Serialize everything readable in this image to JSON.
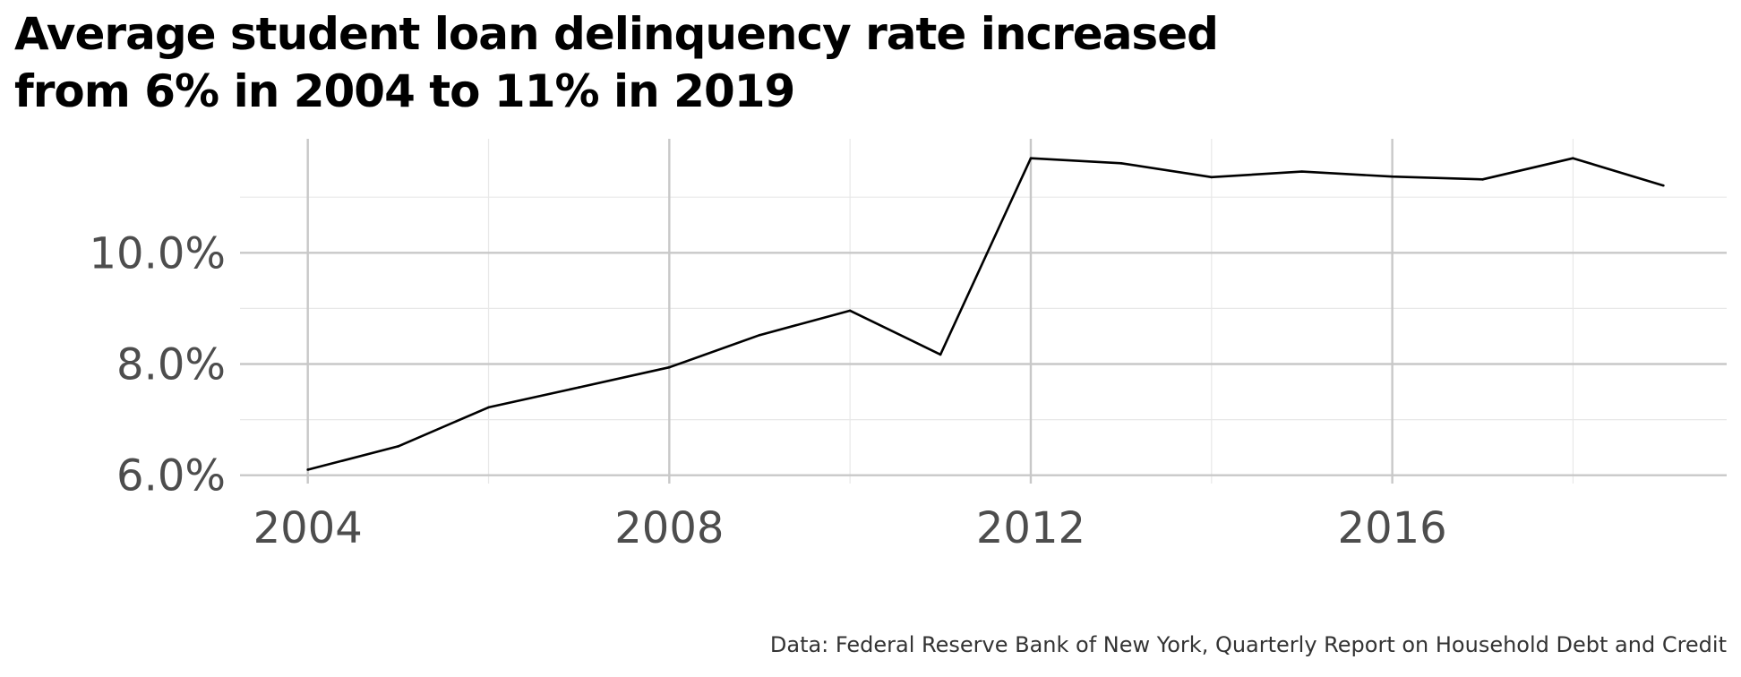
{
  "chart_data": {
    "type": "line",
    "title_lines": [
      "Average student loan delinquency rate increased",
      "from 6% in 2004 to 11% in 2019"
    ],
    "caption": "Data: Federal Reserve Bank of New York, Quarterly Report on Household Debt and Credit",
    "xlabel": "",
    "ylabel": "",
    "x": [
      2004,
      2005,
      2006,
      2007,
      2008,
      2009,
      2010,
      2011,
      2012,
      2013,
      2014,
      2015,
      2016,
      2017,
      2018,
      2019
    ],
    "series": [
      {
        "values": [
          6.1,
          6.52,
          7.22,
          7.58,
          7.94,
          8.52,
          8.96,
          8.17,
          11.7,
          11.61,
          11.36,
          11.46,
          11.37,
          11.32,
          11.7,
          11.21
        ]
      }
    ],
    "xlim": [
      2003.25,
      2019.7
    ],
    "ylim": [
      5.85,
      12.05
    ],
    "x_ticks": [
      2004,
      2008,
      2012,
      2016
    ],
    "x_tick_labels": [
      "2004",
      "2008",
      "2012",
      "2016"
    ],
    "x_minor_ticks": [
      2006,
      2010,
      2014,
      2018
    ],
    "y_ticks": [
      6,
      8,
      10
    ],
    "y_tick_labels": [
      "6.0%",
      "8.0%",
      "10.0%"
    ],
    "y_minor_ticks": [
      7,
      9,
      11
    ],
    "grid": true,
    "line_color": "#000000",
    "major_grid_color": "#c8c8c8",
    "minor_grid_color": "#e8e8e8"
  }
}
